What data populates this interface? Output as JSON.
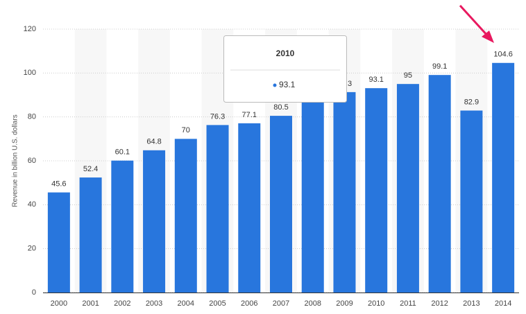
{
  "chart_data": {
    "type": "bar",
    "y_label": "Revenue in billion U.S. dollars",
    "categories": [
      "2000",
      "2001",
      "2002",
      "2003",
      "2004",
      "2005",
      "2006",
      "2007",
      "2008",
      "2009",
      "2010",
      "2011",
      "2012",
      "2013",
      "2014"
    ],
    "values": [
      45.6,
      52.4,
      60.1,
      64.8,
      70,
      76.3,
      77.1,
      80.5,
      87.1,
      91.3,
      93.1,
      95,
      99.1,
      82.9,
      104.6
    ],
    "color": "#2876dd",
    "ylim": [
      0,
      120
    ],
    "yticks": [
      0,
      20,
      40,
      60,
      80,
      100,
      120
    ],
    "grid": true,
    "tooltip": {
      "title": "2010",
      "value": 93.1
    }
  }
}
